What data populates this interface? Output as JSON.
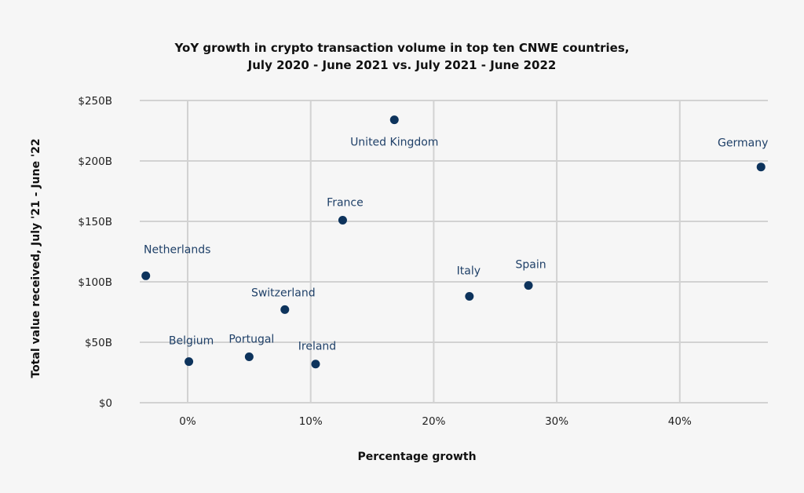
{
  "chart_data": {
    "type": "scatter",
    "title": [
      "YoY growth in crypto transaction volume in top ten CNWE countries,",
      "July 2020 - June 2021 vs. July 2021 - June 2022"
    ],
    "xlabel": "Percentage growth",
    "ylabel": "Total value received, July '21 - June '22",
    "xlim": [
      -4,
      47
    ],
    "ylim": [
      0,
      250
    ],
    "x_ticks": [
      0,
      10,
      20,
      30,
      40
    ],
    "x_tick_labels": [
      "0%",
      "10%",
      "20%",
      "30%",
      "40%"
    ],
    "y_ticks": [
      0,
      50,
      100,
      150,
      200,
      250
    ],
    "y_tick_labels": [
      "$0",
      "$50B",
      "$100B",
      "$150B",
      "$200B",
      "$250B"
    ],
    "grid": true,
    "legend": "none",
    "marker_color": "#0d335c",
    "label_color": "#1f4068",
    "points": [
      {
        "name": "Netherlands",
        "x": -3.4,
        "y": 105,
        "label_pos": "above"
      },
      {
        "name": "Belgium",
        "x": 0.1,
        "y": 34,
        "label_pos": "above"
      },
      {
        "name": "Portugal",
        "x": 5.0,
        "y": 38,
        "label_pos": "above"
      },
      {
        "name": "Switzerland",
        "x": 7.9,
        "y": 77,
        "label_pos": "above"
      },
      {
        "name": "Ireland",
        "x": 10.4,
        "y": 32,
        "label_pos": "above"
      },
      {
        "name": "France",
        "x": 12.6,
        "y": 151,
        "label_pos": "above"
      },
      {
        "name": "United Kingdom",
        "x": 16.8,
        "y": 234,
        "label_pos": "below"
      },
      {
        "name": "Italy",
        "x": 22.9,
        "y": 88,
        "label_pos": "above"
      },
      {
        "name": "Spain",
        "x": 27.7,
        "y": 97,
        "label_pos": "above"
      },
      {
        "name": "Germany",
        "x": 46.6,
        "y": 195,
        "label_pos": "above"
      }
    ]
  }
}
